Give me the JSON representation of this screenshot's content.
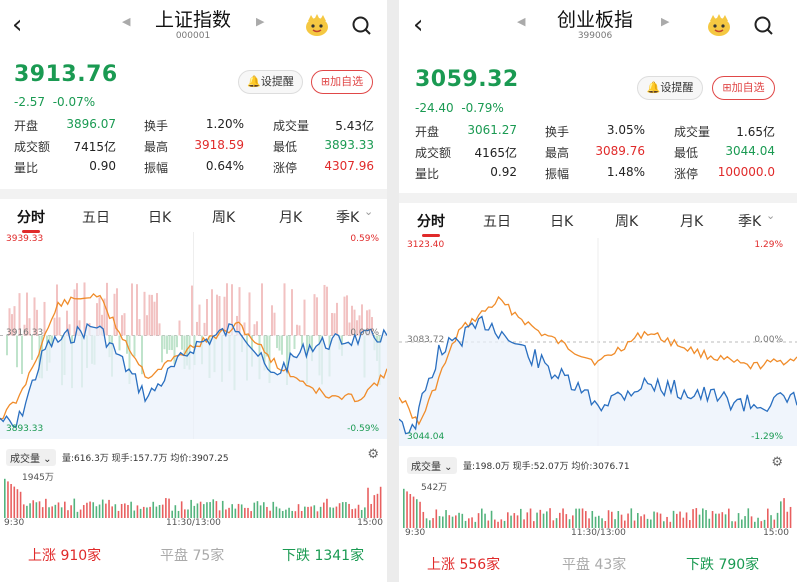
{
  "left": {
    "title": "上证指数",
    "code": "000001",
    "price": "3913.76",
    "change": "-2.57",
    "change_pct": "-0.07%",
    "alert_label": "设提醒",
    "watch_label": "加自选",
    "stats": [
      {
        "label": "开盘",
        "value": "3896.07",
        "color": "g"
      },
      {
        "label": "换手",
        "value": "1.20%",
        "color": "k"
      },
      {
        "label": "成交量",
        "value": "5.43亿",
        "color": "k"
      },
      {
        "label": "成交额",
        "value": "7415亿",
        "color": "k"
      },
      {
        "label": "最高",
        "value": "3918.59",
        "color": "r"
      },
      {
        "label": "最低",
        "value": "3893.33",
        "color": "g"
      },
      {
        "label": "量比",
        "value": "0.90",
        "color": "k"
      },
      {
        "label": "振幅",
        "value": "0.64%",
        "color": "k"
      },
      {
        "label": "涨停",
        "value": "4307.96",
        "color": "r"
      }
    ],
    "tabs": [
      "分时",
      "五日",
      "日K",
      "周K",
      "月K",
      "季K"
    ],
    "axis": {
      "top": "3939.33",
      "mid": "3916.33",
      "bottom": "3893.33",
      "top_pct": "0.59%",
      "mid_pct": "0.00%",
      "bottom_pct": "-0.59%"
    },
    "vol_selector": "成交量",
    "vol_info": "量:616.3万  现手:157.7万  均价:3907.25",
    "vol_max": "1945万",
    "time_labels": [
      "9:30",
      "11:30/13:00",
      "15:00"
    ],
    "footer": {
      "up_label": "上涨",
      "up": "910家",
      "flat_label": "平盘",
      "flat": "75家",
      "down_label": "下跌",
      "down": "1341家"
    }
  },
  "right": {
    "title": "创业板指",
    "code": "399006",
    "price": "3059.32",
    "change": "-24.40",
    "change_pct": "-0.79%",
    "alert_label": "设提醒",
    "watch_label": "加自选",
    "stats": [
      {
        "label": "开盘",
        "value": "3061.27",
        "color": "g"
      },
      {
        "label": "换手",
        "value": "3.05%",
        "color": "k"
      },
      {
        "label": "成交量",
        "value": "1.65亿",
        "color": "k"
      },
      {
        "label": "成交额",
        "value": "4165亿",
        "color": "k"
      },
      {
        "label": "最高",
        "value": "3089.76",
        "color": "r"
      },
      {
        "label": "最低",
        "value": "3044.04",
        "color": "g"
      },
      {
        "label": "量比",
        "value": "0.92",
        "color": "k"
      },
      {
        "label": "振幅",
        "value": "1.48%",
        "color": "k"
      },
      {
        "label": "涨停",
        "value": "100000.0",
        "color": "r"
      }
    ],
    "tabs": [
      "分时",
      "五日",
      "日K",
      "周K",
      "月K",
      "季K"
    ],
    "axis": {
      "top": "3123.40",
      "mid": "3083.72",
      "bottom": "3044.04",
      "top_pct": "1.29%",
      "mid_pct": "0.00%",
      "bottom_pct": "-1.29%"
    },
    "vol_selector": "成交量",
    "vol_info": "量:198.0万  现手:52.07万  均价:3076.71",
    "vol_max": "542万",
    "time_labels": [
      "9:30",
      "11:30/13:00",
      "15:00"
    ],
    "footer": {
      "up_label": "上涨",
      "up": "556家",
      "flat_label": "平盘",
      "flat": "43家",
      "down_label": "下跌",
      "down": "790家"
    }
  },
  "colors": {
    "up": "#e02a2a",
    "down": "#1a9a52",
    "price_line": "#2a6fc0",
    "avg_line": "#f08c2a"
  }
}
